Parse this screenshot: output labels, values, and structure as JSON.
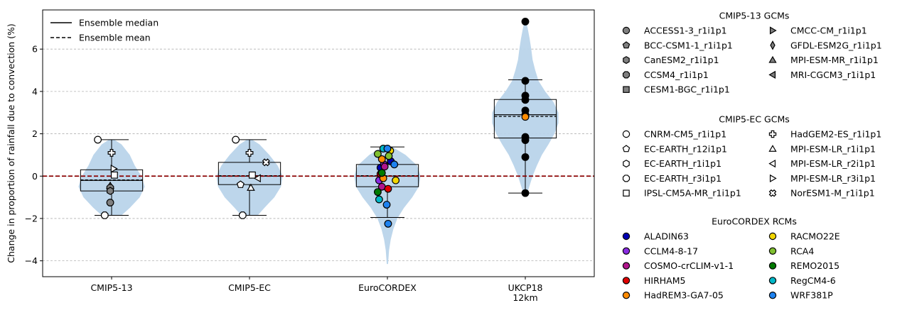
{
  "chart_data": {
    "type": "violin",
    "ylabel": "Change in proportion of rainfall due to convection (%)",
    "ylim": [
      -4.75,
      7.85
    ],
    "yticks": [
      -4,
      -2,
      0,
      2,
      4,
      6
    ],
    "y_grid": true,
    "zero_line_color": "#8b0000",
    "violin_color": "#b9d4ea",
    "categories": [
      "CMIP5-13",
      "CMIP5-EC",
      "EuroCORDEX",
      "UKCP18\n12km"
    ],
    "line_legend": [
      {
        "label": "Ensemble median",
        "dash": "solid"
      },
      {
        "label": "Ensemble mean",
        "dash": "dashed"
      }
    ],
    "groups": [
      {
        "category": "CMIP5-13",
        "box": {
          "q1": -0.7,
          "median": -0.2,
          "q3": 0.3,
          "whisker_low": -1.85,
          "whisker_high": 1.72,
          "mean": -0.18
        },
        "violin": [
          [
            -1.85,
            0.3
          ],
          [
            -1.5,
            0.55
          ],
          [
            -1.0,
            0.85
          ],
          [
            -0.5,
            1.0
          ],
          [
            0.0,
            0.9
          ],
          [
            0.5,
            0.7
          ],
          [
            1.0,
            0.55
          ],
          [
            1.5,
            0.3
          ],
          [
            1.72,
            0.08
          ]
        ],
        "points": [
          {
            "model": "CNRM-CM5_r1i1p1",
            "y": 1.72,
            "dx": -0.2
          },
          {
            "model": "HadGEM2-ES_r1i1p1",
            "y": 1.1,
            "dx": 0.0
          },
          {
            "model": "MPI-ESM-LR_r3i1p1",
            "y": 0.35,
            "dx": 0.03
          },
          {
            "model": "IPSL-CM5A-MR_r1i1p1",
            "y": 0.05,
            "dx": 0.04
          },
          {
            "model": "MPI-ESM-MR_r1i1p1",
            "y": -0.45,
            "dx": -0.02
          },
          {
            "model": "CCSM4_r1i1p1",
            "y": -0.55,
            "dx": -0.02
          },
          {
            "model": "CanESM2_r1i1p1",
            "y": -0.7,
            "dx": -0.02
          },
          {
            "model": "ACCESS1-3_r1i1p1",
            "y": -1.25,
            "dx": -0.02
          },
          {
            "model": "EC-EARTH_r3i1p1",
            "y": -1.85,
            "dx": -0.1
          }
        ]
      },
      {
        "category": "CMIP5-EC",
        "box": {
          "q1": -0.4,
          "median": 0.0,
          "q3": 0.65,
          "whisker_low": -1.85,
          "whisker_high": 1.72,
          "mean": 0.02
        },
        "violin": [
          [
            -1.85,
            0.25
          ],
          [
            -1.5,
            0.45
          ],
          [
            -1.0,
            0.75
          ],
          [
            -0.5,
            0.95
          ],
          [
            0.0,
            1.0
          ],
          [
            0.5,
            0.85
          ],
          [
            1.0,
            0.6
          ],
          [
            1.5,
            0.3
          ],
          [
            1.72,
            0.08
          ]
        ],
        "points": [
          {
            "model": "CNRM-CM5_r1i1p1",
            "y": 1.72,
            "dx": -0.2
          },
          {
            "model": "HadGEM2-ES_r1i1p1",
            "y": 1.1,
            "dx": 0.0
          },
          {
            "model": "NorESM1-M_r1i1p1",
            "y": 0.65,
            "dx": 0.24
          },
          {
            "model": "IPSL-CM5A-MR_r1i1p1",
            "y": 0.05,
            "dx": 0.04
          },
          {
            "model": "MPI-ESM-LR_r2i1p1",
            "y": -0.1,
            "dx": 0.12
          },
          {
            "model": "EC-EARTH_r12i1p1",
            "y": -0.4,
            "dx": -0.13
          },
          {
            "model": "MPI-ESM-LR_r1i1p1",
            "y": -0.55,
            "dx": 0.02
          },
          {
            "model": "EC-EARTH_r3i1p1",
            "y": -1.85,
            "dx": -0.1
          }
        ]
      },
      {
        "category": "EuroCORDEX",
        "box": {
          "q1": -0.5,
          "median": 0.0,
          "q3": 0.55,
          "whisker_low": -1.95,
          "whisker_high": 1.38,
          "mean": 0.02
        },
        "violin": [
          [
            -4.15,
            0.02
          ],
          [
            -3.5,
            0.05
          ],
          [
            -3.0,
            0.1
          ],
          [
            -2.5,
            0.18
          ],
          [
            -2.0,
            0.3
          ],
          [
            -1.5,
            0.5
          ],
          [
            -1.0,
            0.75
          ],
          [
            -0.5,
            0.95
          ],
          [
            0.0,
            1.0
          ],
          [
            0.5,
            0.9
          ],
          [
            1.0,
            0.55
          ],
          [
            1.38,
            0.15
          ]
        ],
        "points": [
          {
            "model": "ALADIN63",
            "y": 0.4,
            "dx": -0.1
          },
          {
            "model": "ALADIN63",
            "y": 0.7,
            "dx": 0.05
          },
          {
            "model": "CCLM4-8-17",
            "y": -0.2,
            "dx": -0.12
          },
          {
            "model": "CCLM4-8-17",
            "y": 0.55,
            "dx": -0.05
          },
          {
            "model": "COSMO-crCLIM-v1-1",
            "y": 0.45,
            "dx": -0.04
          },
          {
            "model": "COSMO-crCLIM-v1-1",
            "y": -0.5,
            "dx": -0.08
          },
          {
            "model": "HIRHAM5",
            "y": -0.6,
            "dx": 0.01
          },
          {
            "model": "HIRHAM5",
            "y": 0.1,
            "dx": -0.1
          },
          {
            "model": "HadREM3-GA7-05",
            "y": -0.1,
            "dx": -0.06
          },
          {
            "model": "HadREM3-GA7-05",
            "y": 0.8,
            "dx": -0.08
          },
          {
            "model": "RACMO22E",
            "y": -0.2,
            "dx": 0.12
          },
          {
            "model": "RACMO22E",
            "y": 1.2,
            "dx": 0.04
          },
          {
            "model": "RCA4",
            "y": 1.05,
            "dx": -0.14
          },
          {
            "model": "RCA4",
            "y": 0.95,
            "dx": 0.02
          },
          {
            "model": "REMO2015",
            "y": -0.75,
            "dx": -0.14
          },
          {
            "model": "REMO2015",
            "y": 0.15,
            "dx": -0.08
          },
          {
            "model": "RegCM4-6",
            "y": 1.3,
            "dx": -0.06
          },
          {
            "model": "RegCM4-6",
            "y": -1.1,
            "dx": -0.12
          },
          {
            "model": "WRF381P",
            "y": 1.3,
            "dx": 0.0
          },
          {
            "model": "WRF381P",
            "y": -2.25,
            "dx": 0.01
          },
          {
            "model": "WRF381P",
            "y": -1.35,
            "dx": -0.01
          },
          {
            "model": "WRF381P",
            "y": 0.55,
            "dx": 0.1
          }
        ]
      },
      {
        "category": "UKCP18\n12km",
        "box": {
          "q1": 1.8,
          "median": 2.9,
          "q3": 3.62,
          "whisker_low": -0.8,
          "whisker_high": 4.55,
          "mean": 2.82
        },
        "violin": [
          [
            -0.85,
            0.05
          ],
          [
            -0.5,
            0.12
          ],
          [
            0.0,
            0.22
          ],
          [
            0.5,
            0.35
          ],
          [
            1.0,
            0.5
          ],
          [
            1.5,
            0.7
          ],
          [
            2.0,
            0.88
          ],
          [
            2.5,
            1.0
          ],
          [
            3.0,
            1.0
          ],
          [
            3.5,
            0.85
          ],
          [
            4.0,
            0.6
          ],
          [
            4.5,
            0.4
          ],
          [
            5.0,
            0.3
          ],
          [
            5.5,
            0.22
          ],
          [
            6.0,
            0.18
          ],
          [
            6.5,
            0.13
          ],
          [
            7.0,
            0.07
          ],
          [
            7.3,
            0.02
          ]
        ],
        "points": [
          {
            "model": "UKCP18",
            "y": 7.3,
            "dx": 0.0
          },
          {
            "model": "UKCP18",
            "y": 4.5,
            "dx": 0.0
          },
          {
            "model": "UKCP18",
            "y": 3.8,
            "dx": 0.0
          },
          {
            "model": "UKCP18",
            "y": 3.6,
            "dx": 0.0
          },
          {
            "model": "UKCP18",
            "y": 3.1,
            "dx": 0.0
          },
          {
            "model": "UKCP18",
            "y": 2.9,
            "dx": 0.0
          },
          {
            "model": "HadREM3-GA7-05",
            "y": 2.8,
            "dx": 0.0
          },
          {
            "model": "UKCP18",
            "y": 1.85,
            "dx": 0.0
          },
          {
            "model": "UKCP18",
            "y": 1.7,
            "dx": 0.0
          },
          {
            "model": "UKCP18",
            "y": 0.9,
            "dx": 0.0
          },
          {
            "model": "UKCP18",
            "y": -0.8,
            "dx": 0.0
          }
        ]
      }
    ],
    "legends": [
      {
        "title": "CMIP5-13 GCMs",
        "entries": [
          {
            "label": "ACCESS1-3_r1i1p1",
            "marker": "circle",
            "color": "#808080"
          },
          {
            "label": "BCC-CSM1-1_r1i1p1",
            "marker": "pentagon",
            "color": "#808080"
          },
          {
            "label": "CanESM2_r1i1p1",
            "marker": "hexagon",
            "color": "#808080"
          },
          {
            "label": "CCSM4_r1i1p1",
            "marker": "octagon",
            "color": "#808080"
          },
          {
            "label": "CESM1-BGC_r1i1p1",
            "marker": "square",
            "color": "#808080"
          },
          {
            "label": "CMCC-CM_r1i1p1",
            "marker": "tri-right",
            "color": "#808080"
          },
          {
            "label": "GFDL-ESM2G_r1i1p1",
            "marker": "thin-diamond",
            "color": "#808080"
          },
          {
            "label": "MPI-ESM-MR_r1i1p1",
            "marker": "tri-up",
            "color": "#808080"
          },
          {
            "label": "MRI-CGCM3_r1i1p1",
            "marker": "tri-left",
            "color": "#808080"
          }
        ]
      },
      {
        "title": "CMIP5-EC GCMs",
        "entries": [
          {
            "label": "CNRM-CM5_r1i1p1",
            "marker": "circle",
            "color": "#ffffff"
          },
          {
            "label": "EC-EARTH_r12i1p1",
            "marker": "pentagon",
            "color": "#ffffff"
          },
          {
            "label": "EC-EARTH_r1i1p1",
            "marker": "hexagon",
            "color": "#ffffff"
          },
          {
            "label": "EC-EARTH_r3i1p1",
            "marker": "octagon",
            "color": "#ffffff"
          },
          {
            "label": "IPSL-CM5A-MR_r1i1p1",
            "marker": "square",
            "color": "#ffffff"
          },
          {
            "label": "HadGEM2-ES_r1i1p1",
            "marker": "plus",
            "color": "#ffffff"
          },
          {
            "label": "MPI-ESM-LR_r1i1p1",
            "marker": "tri-up",
            "color": "#ffffff"
          },
          {
            "label": "MPI-ESM-LR_r2i1p1",
            "marker": "tri-left",
            "color": "#ffffff"
          },
          {
            "label": "MPI-ESM-LR_r3i1p1",
            "marker": "tri-right",
            "color": "#ffffff"
          },
          {
            "label": "NorESM1-M_r1i1p1",
            "marker": "x",
            "color": "#ffffff"
          }
        ]
      },
      {
        "title": "EuroCORDEX RCMs",
        "entries": [
          {
            "label": "ALADIN63",
            "marker": "circle",
            "color": "#0000b4"
          },
          {
            "label": "CCLM4-8-17",
            "marker": "circle",
            "color": "#8a2be2"
          },
          {
            "label": "COSMO-crCLIM-v1-1",
            "marker": "circle",
            "color": "#b0148c"
          },
          {
            "label": "HIRHAM5",
            "marker": "circle",
            "color": "#e00000"
          },
          {
            "label": "HadREM3-GA7-05",
            "marker": "circle",
            "color": "#ff8c00"
          },
          {
            "label": "RACMO22E",
            "marker": "circle",
            "color": "#f2d600"
          },
          {
            "label": "RCA4",
            "marker": "circle",
            "color": "#80c030"
          },
          {
            "label": "REMO2015",
            "marker": "circle",
            "color": "#007a00"
          },
          {
            "label": "RegCM4-6",
            "marker": "circle",
            "color": "#00b8c8"
          },
          {
            "label": "WRF381P",
            "marker": "circle",
            "color": "#1e82f0"
          }
        ]
      }
    ]
  }
}
